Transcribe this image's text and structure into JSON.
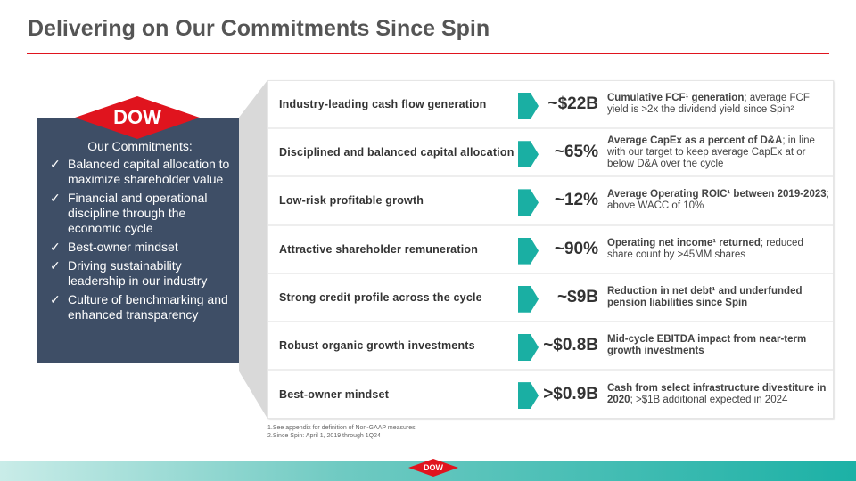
{
  "title": "Delivering on Our Commitments Since Spin",
  "logo": "DOW",
  "panel": {
    "heading": "Our Commitments:",
    "items": [
      "Balanced capital allocation to maximize shareholder value",
      "Financial and operational discipline through the economic cycle",
      "Best-owner mindset",
      "Driving sustainability leadership in our industry",
      "Culture of benchmarking and enhanced transparency"
    ],
    "check": "✓"
  },
  "rows": [
    {
      "label": "Industry-leading cash flow generation",
      "value": "~$22B",
      "desc_bold": "Cumulative FCF¹ generation",
      "desc_rest": "; average FCF yield is >2x the dividend yield since Spin²"
    },
    {
      "label": "Disciplined and balanced capital allocation",
      "value": "~65%",
      "desc_bold": "Average CapEx as a percent of D&A",
      "desc_rest": "; in line with our target to keep average CapEx at or below D&A over the cycle"
    },
    {
      "label": "Low-risk profitable growth",
      "value": "~12%",
      "desc_bold": "Average Operating ROIC¹ between 2019-2023",
      "desc_rest": "; above WACC of 10%"
    },
    {
      "label": "Attractive shareholder remuneration",
      "value": "~90%",
      "desc_bold": "Operating net income¹ returned",
      "desc_rest": "; reduced share count by >45MM shares"
    },
    {
      "label": "Strong credit profile across the cycle",
      "value": "~$9B",
      "desc_bold": "Reduction in net debt¹ and underfunded pension liabilities since Spin",
      "desc_rest": ""
    },
    {
      "label": "Robust organic growth investments",
      "value": "~$0.8B",
      "desc_bold": "Mid-cycle EBITDA impact from near-term growth investments",
      "desc_rest": ""
    },
    {
      "label": "Best-owner mindset",
      "value": ">$0.9B",
      "desc_bold": "Cash from select infrastructure divestiture in 2020",
      "desc_rest": "; >$1B additional expected in 2024"
    }
  ],
  "footnotes": [
    "1.See appendix for definition of Non-GAAP measures",
    "2.Since Spin: April 1, 2019 through 1Q24"
  ],
  "colors": {
    "accent": "#1aafa3",
    "panel": "#3e4e66",
    "red": "#e0141e"
  }
}
